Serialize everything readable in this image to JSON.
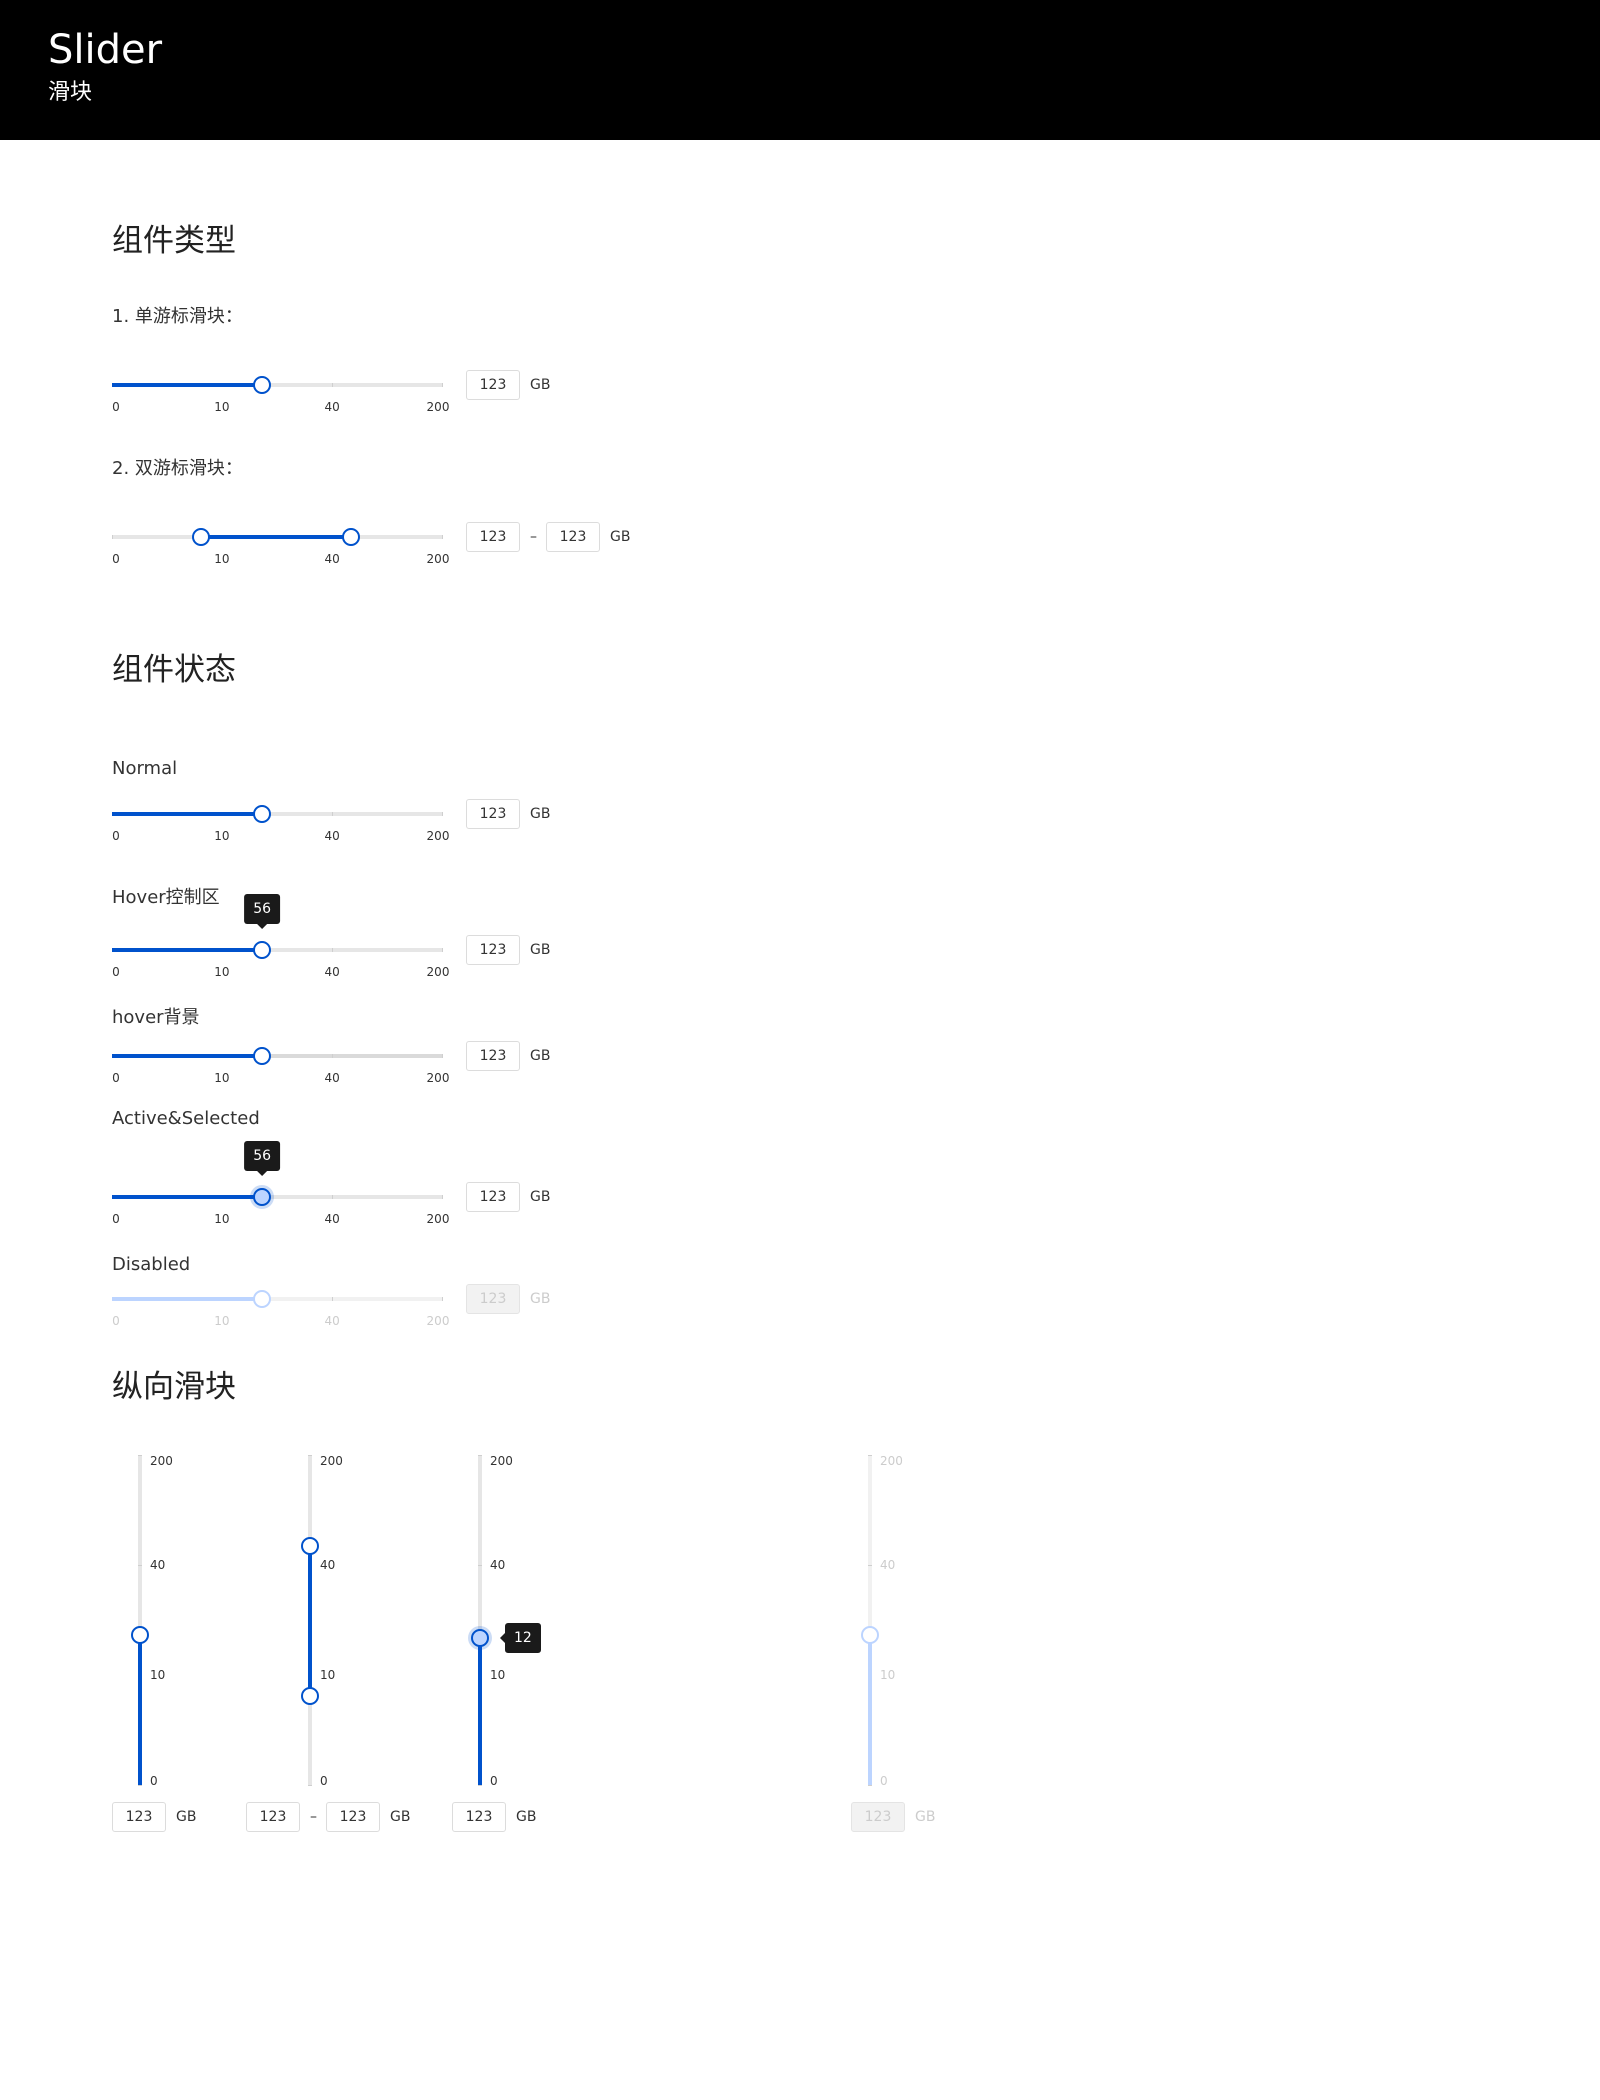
{
  "header": {
    "title": "Slider",
    "subtitle": "滑块"
  },
  "colors": {
    "accent": "#0052cc",
    "accent_light": "#bcd4ff",
    "track": "#e6e6e6",
    "tooltip_bg": "#1a1a1a"
  },
  "sections": {
    "types": "组件类型",
    "states": "组件状态",
    "vertical": "纵向滑块"
  },
  "scale": {
    "ticks": [
      "0",
      "10",
      "40",
      "200"
    ]
  },
  "unit": "GB",
  "range_separator": "–",
  "types": {
    "single": {
      "label": "1. 单游标滑块：",
      "input_value": "123"
    },
    "range": {
      "label": "2. 双游标滑块：",
      "input_min": "123",
      "input_max": "123"
    }
  },
  "states": {
    "normal": {
      "label": "Normal",
      "input_value": "123"
    },
    "hover_control": {
      "label": "Hover控制区",
      "tooltip": "56",
      "input_value": "123"
    },
    "hover_bg": {
      "label": "hover背景",
      "input_value": "123"
    },
    "active": {
      "label": "Active&Selected",
      "tooltip": "56",
      "input_value": "123"
    },
    "disabled": {
      "label": "Disabled",
      "input_value": "123"
    }
  },
  "vertical": {
    "single": {
      "input_value": "123"
    },
    "range": {
      "input_min": "123",
      "input_max": "123"
    },
    "active": {
      "tooltip": "12",
      "input_value": "123"
    },
    "disabled": {
      "input_value": "123"
    }
  },
  "slider_levels": {
    "single": 0.455,
    "range_low": 0.27,
    "range_high": 0.725,
    "state": 0.455,
    "vertical_single": 0.455,
    "vertical_range_low": 0.27,
    "vertical_range_high": 0.725,
    "vertical_active": 0.445,
    "vertical_disabled": 0.455
  }
}
